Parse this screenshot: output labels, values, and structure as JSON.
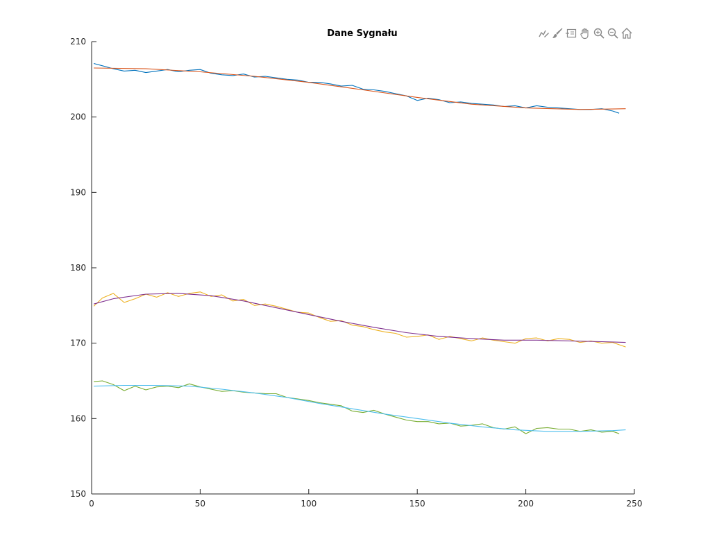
{
  "chart_data": {
    "type": "line",
    "title": "Dane Sygnału",
    "xlabel": "",
    "ylabel": "",
    "xlim": [
      0,
      250
    ],
    "ylim": [
      150,
      210
    ],
    "xticks": [
      0,
      50,
      100,
      150,
      200,
      250
    ],
    "yticks": [
      150,
      160,
      170,
      180,
      190,
      200,
      210
    ],
    "grid": false,
    "series": [
      {
        "color": "#0072BD",
        "style": "noisy",
        "x": [
          1,
          5,
          10,
          15,
          20,
          25,
          30,
          35,
          40,
          45,
          50,
          55,
          60,
          65,
          70,
          75,
          80,
          85,
          90,
          95,
          100,
          105,
          110,
          115,
          120,
          125,
          130,
          135,
          140,
          145,
          150,
          155,
          160,
          165,
          170,
          175,
          180,
          185,
          190,
          195,
          200,
          205,
          210,
          215,
          220,
          225,
          230,
          235,
          240,
          243
        ],
        "y": [
          207.1,
          206.8,
          206.4,
          206.1,
          206.2,
          205.9,
          206.1,
          206.3,
          206.0,
          206.2,
          206.3,
          205.8,
          205.6,
          205.5,
          205.7,
          205.3,
          205.4,
          205.2,
          205.0,
          204.9,
          204.6,
          204.6,
          204.4,
          204.1,
          204.2,
          203.7,
          203.6,
          203.4,
          203.1,
          202.8,
          202.2,
          202.5,
          202.3,
          201.9,
          202.0,
          201.8,
          201.7,
          201.6,
          201.4,
          201.5,
          201.2,
          201.5,
          201.3,
          201.2,
          201.1,
          201.0,
          201.0,
          201.1,
          200.8,
          200.5
        ]
      },
      {
        "color": "#D95319",
        "style": "smooth",
        "x": [
          1,
          25,
          50,
          75,
          100,
          125,
          150,
          175,
          200,
          225,
          246
        ],
        "y": [
          206.5,
          206.4,
          206.0,
          205.4,
          204.6,
          203.6,
          202.6,
          201.7,
          201.2,
          201.0,
          201.1
        ]
      },
      {
        "color": "#EDB120",
        "style": "noisy",
        "x": [
          1,
          5,
          10,
          15,
          20,
          25,
          30,
          35,
          40,
          45,
          50,
          55,
          60,
          65,
          70,
          75,
          80,
          85,
          90,
          95,
          100,
          105,
          110,
          115,
          120,
          125,
          130,
          135,
          140,
          145,
          150,
          155,
          160,
          165,
          170,
          175,
          180,
          185,
          190,
          195,
          200,
          205,
          210,
          215,
          220,
          225,
          230,
          235,
          240,
          246
        ],
        "y": [
          174.9,
          176.0,
          176.6,
          175.4,
          175.9,
          176.5,
          176.1,
          176.7,
          176.2,
          176.6,
          176.8,
          176.2,
          176.4,
          175.6,
          175.8,
          175.0,
          175.2,
          174.9,
          174.5,
          174.1,
          174.0,
          173.4,
          172.9,
          173.0,
          172.4,
          172.2,
          171.8,
          171.5,
          171.3,
          170.8,
          170.9,
          171.1,
          170.5,
          170.9,
          170.6,
          170.3,
          170.7,
          170.4,
          170.2,
          170.0,
          170.6,
          170.7,
          170.3,
          170.6,
          170.5,
          170.1,
          170.3,
          170.0,
          170.1,
          169.5
        ]
      },
      {
        "color": "#7E2F8E",
        "style": "smooth",
        "x": [
          1,
          10,
          25,
          40,
          55,
          70,
          85,
          100,
          115,
          130,
          145,
          160,
          175,
          190,
          205,
          220,
          235,
          246
        ],
        "y": [
          175.2,
          175.9,
          176.5,
          176.6,
          176.3,
          175.6,
          174.7,
          173.8,
          172.9,
          172.1,
          171.4,
          170.9,
          170.6,
          170.4,
          170.4,
          170.3,
          170.2,
          170.1
        ]
      },
      {
        "color": "#77AC30",
        "style": "noisy",
        "x": [
          1,
          5,
          10,
          15,
          20,
          25,
          30,
          35,
          40,
          45,
          50,
          55,
          60,
          65,
          70,
          75,
          80,
          85,
          90,
          95,
          100,
          105,
          110,
          115,
          120,
          125,
          130,
          135,
          140,
          145,
          150,
          155,
          160,
          165,
          170,
          175,
          180,
          185,
          190,
          195,
          200,
          205,
          210,
          215,
          220,
          225,
          230,
          235,
          240,
          243
        ],
        "y": [
          164.9,
          165.0,
          164.5,
          163.7,
          164.3,
          163.8,
          164.2,
          164.3,
          164.1,
          164.6,
          164.2,
          163.9,
          163.6,
          163.7,
          163.5,
          163.4,
          163.3,
          163.3,
          162.8,
          162.6,
          162.4,
          162.1,
          161.9,
          161.7,
          161.0,
          160.8,
          161.1,
          160.6,
          160.2,
          159.8,
          159.6,
          159.6,
          159.3,
          159.4,
          159.0,
          159.1,
          159.3,
          158.8,
          158.6,
          158.9,
          158.0,
          158.7,
          158.8,
          158.6,
          158.6,
          158.3,
          158.5,
          158.2,
          158.3,
          158.0
        ]
      },
      {
        "color": "#4DBEEE",
        "style": "smooth",
        "x": [
          1,
          15,
          30,
          45,
          60,
          75,
          90,
          105,
          120,
          135,
          150,
          165,
          180,
          195,
          210,
          225,
          240,
          246
        ],
        "y": [
          164.3,
          164.4,
          164.4,
          164.3,
          163.9,
          163.4,
          162.8,
          162.0,
          161.3,
          160.6,
          160.0,
          159.4,
          158.9,
          158.5,
          158.3,
          158.3,
          158.4,
          158.5
        ]
      }
    ]
  },
  "toolbar": {
    "items": [
      {
        "name": "edit-plot-icon",
        "color": "#808080"
      },
      {
        "name": "brush-icon",
        "color": "#808080"
      },
      {
        "name": "insert-legend-icon",
        "color": "#808080"
      },
      {
        "name": "pan-hand-icon",
        "color": "#808080"
      },
      {
        "name": "zoom-in-icon",
        "color": "#808080"
      },
      {
        "name": "zoom-out-icon",
        "color": "#808080"
      },
      {
        "name": "home-icon",
        "color": "#808080"
      }
    ]
  }
}
